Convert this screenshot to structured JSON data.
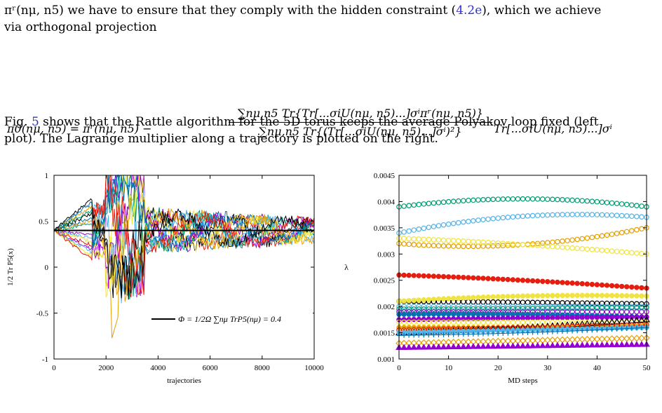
{
  "text": {
    "line1": "πʳ(nμ, n5) we have to ensure that they comply with the hidden constraint (4.2e), which we achieve",
    "line1_pre": "πʳ(nμ, n5) we have to ensure that they comply with the hidden constraint (",
    "line1_ref": "4.2e",
    "line1_post": "), which we achieve",
    "line2": "via orthogonal projection",
    "eq_lhs": "π0(nμ, n5) = πʳ(nμ, n5) −",
    "eq_num": "∑nμ,n5 Tr{Tr[...σiU(nμ, n5)...]σⁱπʳ(nμ, n5)}",
    "eq_den": "∑nμ,n5 Tr{(Tr[...σiU(nμ, n5)...]σⁱ)²}",
    "eq_rhs": "Tr[...σiU(nμ, n5)...]σⁱ",
    "para1_pre": "Fig. ",
    "para1_ref": "5",
    "para1_post": " shows that the Rattle algorithm for the 5D torus keeps the average Polyakov loop fixed (left",
    "para2": "plot). The Lagrange multiplier along a trajectory is plotted on the right."
  },
  "colors": {
    "link": "#3333cc",
    "series": [
      "#9400d3",
      "#009e73",
      "#56b4e9",
      "#e69f00",
      "#f0e442",
      "#0072b2",
      "#e51e10",
      "#000000"
    ]
  },
  "chart_data": [
    {
      "type": "line",
      "title": "",
      "xlabel": "trajectories",
      "ylabel": "1/2 Tr P5(x)",
      "xlim": [
        0,
        10000
      ],
      "ylim": [
        -1,
        1
      ],
      "xticks": [
        "0",
        "2000",
        "4000",
        "6000",
        "8000",
        "10000"
      ],
      "yticks": [
        "-1",
        "-0.5",
        "0",
        "0.5",
        "1"
      ],
      "legend": "Φ = 1/2Ω ∑nμ TrP5(nμ) = 0.4",
      "legend_position": "bottom-right",
      "constant_line": 0.4,
      "series_count": 16,
      "min_value": -0.8,
      "max_value": 1.0,
      "grid": false
    },
    {
      "type": "scatter",
      "title": "",
      "xlabel": "MD steps",
      "ylabel": "λ",
      "xlim": [
        0,
        50
      ],
      "ylim": [
        0.001,
        0.0045
      ],
      "xticks": [
        "0",
        "10",
        "20",
        "30",
        "40",
        "50"
      ],
      "yticks": [
        "0.001",
        "0.0015",
        "0.002",
        "0.0025",
        "0.003",
        "0.0035",
        "0.004",
        "0.0045"
      ],
      "grid": false,
      "series": [
        {
          "color": "#009e73",
          "marker": "circle-open",
          "start": 0.0039,
          "peak": 0.00405,
          "end": 0.0039
        },
        {
          "color": "#56b4e9",
          "marker": "circle-open",
          "start": 0.0034,
          "peak": 0.00372,
          "end": 0.0037
        },
        {
          "color": "#e69f00",
          "marker": "circle-open",
          "start": 0.0032,
          "peak": 0.00318,
          "end": 0.0035
        },
        {
          "color": "#f0e442",
          "marker": "circle-open",
          "start": 0.0033,
          "peak": 0.00318,
          "end": 0.003
        },
        {
          "color": "#e51e10",
          "marker": "circle-filled",
          "start": 0.0026,
          "peak": 0.0025,
          "end": 0.00235
        },
        {
          "color": "#000000",
          "marker": "circle-open",
          "start": 0.0021,
          "peak": 0.00208,
          "end": 0.00205
        },
        {
          "color": "#f0e442",
          "marker": "circle-filled",
          "start": 0.0021,
          "peak": 0.0022,
          "end": 0.0022
        },
        {
          "color": "#56b4e9",
          "marker": "circle-open",
          "start": 0.002,
          "peak": 0.002,
          "end": 0.002
        },
        {
          "color": "#009e73",
          "marker": "circle-open",
          "start": 0.00195,
          "peak": 0.00196,
          "end": 0.00198
        },
        {
          "color": "#9400d3",
          "marker": "circle-open",
          "start": 0.0019,
          "peak": 0.0019,
          "end": 0.0019
        },
        {
          "color": "#0072b2",
          "marker": "circle-filled",
          "start": 0.00185,
          "peak": 0.00185,
          "end": 0.0018
        },
        {
          "color": "#9400d3",
          "marker": "circle-filled",
          "start": 0.00175,
          "peak": 0.00178,
          "end": 0.0018
        },
        {
          "color": "#f0e442",
          "marker": "circle-open",
          "start": 0.0017,
          "peak": 0.0017,
          "end": 0.0017
        },
        {
          "color": "#e69f00",
          "marker": "circle-filled",
          "start": 0.0016,
          "peak": 0.0016,
          "end": 0.00162
        },
        {
          "color": "#000000",
          "marker": "triangle-open",
          "start": 0.0015,
          "peak": 0.0016,
          "end": 0.00175
        },
        {
          "color": "#e51e10",
          "marker": "circle-open",
          "start": 0.00155,
          "peak": 0.0016,
          "end": 0.00165
        },
        {
          "color": "#56b4e9",
          "marker": "circle-filled",
          "start": 0.0015,
          "peak": 0.00155,
          "end": 0.0016
        },
        {
          "color": "#0072b2",
          "marker": "plus",
          "start": 0.00145,
          "peak": 0.0015,
          "end": 0.0016
        },
        {
          "color": "#e69f00",
          "marker": "diamond-open",
          "start": 0.0013,
          "peak": 0.00135,
          "end": 0.0014
        },
        {
          "color": "#9400d3",
          "marker": "triangle-filled",
          "start": 0.00122,
          "peak": 0.00125,
          "end": 0.00128
        }
      ]
    }
  ]
}
